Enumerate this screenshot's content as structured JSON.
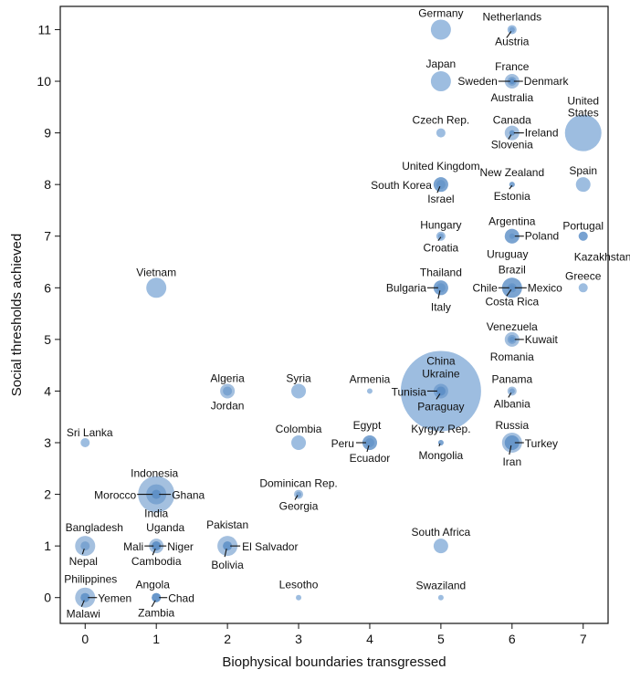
{
  "chart_data": {
    "type": "scatter",
    "title": "",
    "xlabel": "Biophysical boundaries transgressed",
    "ylabel": "Social thresholds achieved",
    "xlim": [
      -0.35,
      7.35
    ],
    "ylim": [
      -0.5,
      11.45
    ],
    "xticks": [
      "0",
      "1",
      "2",
      "3",
      "4",
      "5",
      "6",
      "7"
    ],
    "yticks": [
      "0",
      "1",
      "2",
      "3",
      "4",
      "5",
      "6",
      "7",
      "8",
      "9",
      "10",
      "11"
    ],
    "colors": {
      "bubble": "#9dbde0",
      "inner": "#5a8cc4",
      "leader": "#111111"
    },
    "points": [
      {
        "country": "Germany",
        "x": 5,
        "y": 11,
        "size": "large"
      },
      {
        "country": "Netherlands",
        "x": 6,
        "y": 11,
        "size": "small"
      },
      {
        "country": "Austria",
        "x": 6,
        "y": 11,
        "size": "tiny"
      },
      {
        "country": "Japan",
        "x": 5,
        "y": 10,
        "size": "large"
      },
      {
        "country": "France",
        "x": 6,
        "y": 10,
        "size": "medium"
      },
      {
        "country": "Sweden",
        "x": 6,
        "y": 10,
        "size": "tiny"
      },
      {
        "country": "Denmark",
        "x": 6,
        "y": 10,
        "size": "tiny"
      },
      {
        "country": "Australia",
        "x": 6,
        "y": 10,
        "size": "small"
      },
      {
        "country": "Czech Rep.",
        "x": 5,
        "y": 9,
        "size": "small"
      },
      {
        "country": "Canada",
        "x": 6,
        "y": 9,
        "size": "medium"
      },
      {
        "country": "Ireland",
        "x": 6,
        "y": 9,
        "size": "tiny"
      },
      {
        "country": "Slovenia",
        "x": 6,
        "y": 9,
        "size": "tiny"
      },
      {
        "country": "United States",
        "x": 7,
        "y": 9,
        "size": "xlarge"
      },
      {
        "country": "United Kingdom",
        "x": 5,
        "y": 8,
        "size": "medium"
      },
      {
        "country": "South Korea",
        "x": 5,
        "y": 8,
        "size": "medium"
      },
      {
        "country": "Israel",
        "x": 5,
        "y": 8,
        "size": "small"
      },
      {
        "country": "New Zealand",
        "x": 6,
        "y": 8,
        "size": "tiny"
      },
      {
        "country": "Estonia",
        "x": 6,
        "y": 8,
        "size": "tiny"
      },
      {
        "country": "Spain",
        "x": 7,
        "y": 8,
        "size": "medium"
      },
      {
        "country": "Hungary",
        "x": 5,
        "y": 7,
        "size": "small"
      },
      {
        "country": "Croatia",
        "x": 5,
        "y": 7,
        "size": "tiny"
      },
      {
        "country": "Argentina",
        "x": 6,
        "y": 7,
        "size": "medium"
      },
      {
        "country": "Poland",
        "x": 6,
        "y": 7,
        "size": "medium"
      },
      {
        "country": "Uruguay",
        "x": 6,
        "y": 7,
        "size": "tiny"
      },
      {
        "country": "Portugal",
        "x": 7,
        "y": 7,
        "size": "small"
      },
      {
        "country": "Kazakhstan",
        "x": 7,
        "y": 7,
        "size": "small"
      },
      {
        "country": "Vietnam",
        "x": 1,
        "y": 6,
        "size": "large"
      },
      {
        "country": "Thailand",
        "x": 5,
        "y": 6,
        "size": "medium"
      },
      {
        "country": "Bulgaria",
        "x": 5,
        "y": 6,
        "size": "small"
      },
      {
        "country": "Italy",
        "x": 5,
        "y": 6,
        "size": "medium"
      },
      {
        "country": "Brazil",
        "x": 6,
        "y": 6,
        "size": "large"
      },
      {
        "country": "Chile",
        "x": 6,
        "y": 6,
        "size": "small"
      },
      {
        "country": "Mexico",
        "x": 6,
        "y": 6,
        "size": "large"
      },
      {
        "country": "Costa Rica",
        "x": 6,
        "y": 6,
        "size": "tiny"
      },
      {
        "country": "Greece",
        "x": 7,
        "y": 6,
        "size": "small"
      },
      {
        "country": "Venezuela",
        "x": 6,
        "y": 5,
        "size": "medium"
      },
      {
        "country": "Kuwait",
        "x": 6,
        "y": 5,
        "size": "tiny"
      },
      {
        "country": "Romania",
        "x": 6,
        "y": 5,
        "size": "small"
      },
      {
        "country": "Algeria",
        "x": 2,
        "y": 4,
        "size": "medium"
      },
      {
        "country": "Jordan",
        "x": 2,
        "y": 4,
        "size": "small"
      },
      {
        "country": "Syria",
        "x": 3,
        "y": 4,
        "size": "medium"
      },
      {
        "country": "Armenia",
        "x": 4,
        "y": 4,
        "size": "tiny"
      },
      {
        "country": "China",
        "x": 5,
        "y": 4,
        "size": "huge"
      },
      {
        "country": "Ukraine",
        "x": 5,
        "y": 4,
        "size": "medium"
      },
      {
        "country": "Tunisia",
        "x": 5,
        "y": 4,
        "size": "small"
      },
      {
        "country": "Paraguay",
        "x": 5,
        "y": 4,
        "size": "small"
      },
      {
        "country": "Panama",
        "x": 6,
        "y": 4,
        "size": "small"
      },
      {
        "country": "Albania",
        "x": 6,
        "y": 4,
        "size": "tiny"
      },
      {
        "country": "Sri Lanka",
        "x": 0,
        "y": 3,
        "size": "small"
      },
      {
        "country": "Colombia",
        "x": 3,
        "y": 3,
        "size": "medium"
      },
      {
        "country": "Egypt",
        "x": 4,
        "y": 3,
        "size": "medium"
      },
      {
        "country": "Peru",
        "x": 4,
        "y": 3,
        "size": "medium"
      },
      {
        "country": "Ecuador",
        "x": 4,
        "y": 3,
        "size": "small"
      },
      {
        "country": "Kyrgyz Rep.",
        "x": 5,
        "y": 3,
        "size": "tiny"
      },
      {
        "country": "Mongolia",
        "x": 5,
        "y": 3,
        "size": "tiny"
      },
      {
        "country": "Russia",
        "x": 6,
        "y": 3,
        "size": "large"
      },
      {
        "country": "Turkey",
        "x": 6,
        "y": 3,
        "size": "medium"
      },
      {
        "country": "Iran",
        "x": 6,
        "y": 3,
        "size": "medium"
      },
      {
        "country": "Indonesia",
        "x": 1,
        "y": 2,
        "size": "large"
      },
      {
        "country": "Morocco",
        "x": 1,
        "y": 2,
        "size": "small"
      },
      {
        "country": "Ghana",
        "x": 1,
        "y": 2,
        "size": "small"
      },
      {
        "country": "India",
        "x": 1,
        "y": 2,
        "size": "xlarge"
      },
      {
        "country": "Dominican Rep.",
        "x": 3,
        "y": 2,
        "size": "small"
      },
      {
        "country": "Georgia",
        "x": 3,
        "y": 2,
        "size": "tiny"
      },
      {
        "country": "Bangladesh",
        "x": 0,
        "y": 1,
        "size": "large"
      },
      {
        "country": "Nepal",
        "x": 0,
        "y": 1,
        "size": "small"
      },
      {
        "country": "Uganda",
        "x": 1,
        "y": 1,
        "size": "medium"
      },
      {
        "country": "Mali",
        "x": 1,
        "y": 1,
        "size": "small"
      },
      {
        "country": "Niger",
        "x": 1,
        "y": 1,
        "size": "small"
      },
      {
        "country": "Cambodia",
        "x": 1,
        "y": 1,
        "size": "small"
      },
      {
        "country": "Pakistan",
        "x": 2,
        "y": 1,
        "size": "large"
      },
      {
        "country": "El Salvador",
        "x": 2,
        "y": 1,
        "size": "small"
      },
      {
        "country": "Bolivia",
        "x": 2,
        "y": 1,
        "size": "small"
      },
      {
        "country": "South Africa",
        "x": 5,
        "y": 1,
        "size": "medium"
      },
      {
        "country": "Philippines",
        "x": 0,
        "y": 0,
        "size": "large"
      },
      {
        "country": "Yemen",
        "x": 0,
        "y": 0,
        "size": "small"
      },
      {
        "country": "Malawi",
        "x": 0,
        "y": 0,
        "size": "small"
      },
      {
        "country": "Angola",
        "x": 1,
        "y": 0,
        "size": "small"
      },
      {
        "country": "Chad",
        "x": 1,
        "y": 0,
        "size": "small"
      },
      {
        "country": "Zambia",
        "x": 1,
        "y": 0,
        "size": "small"
      },
      {
        "country": "Lesotho",
        "x": 3,
        "y": 0,
        "size": "tiny"
      },
      {
        "country": "Swaziland",
        "x": 5,
        "y": 0,
        "size": "tiny"
      }
    ]
  }
}
